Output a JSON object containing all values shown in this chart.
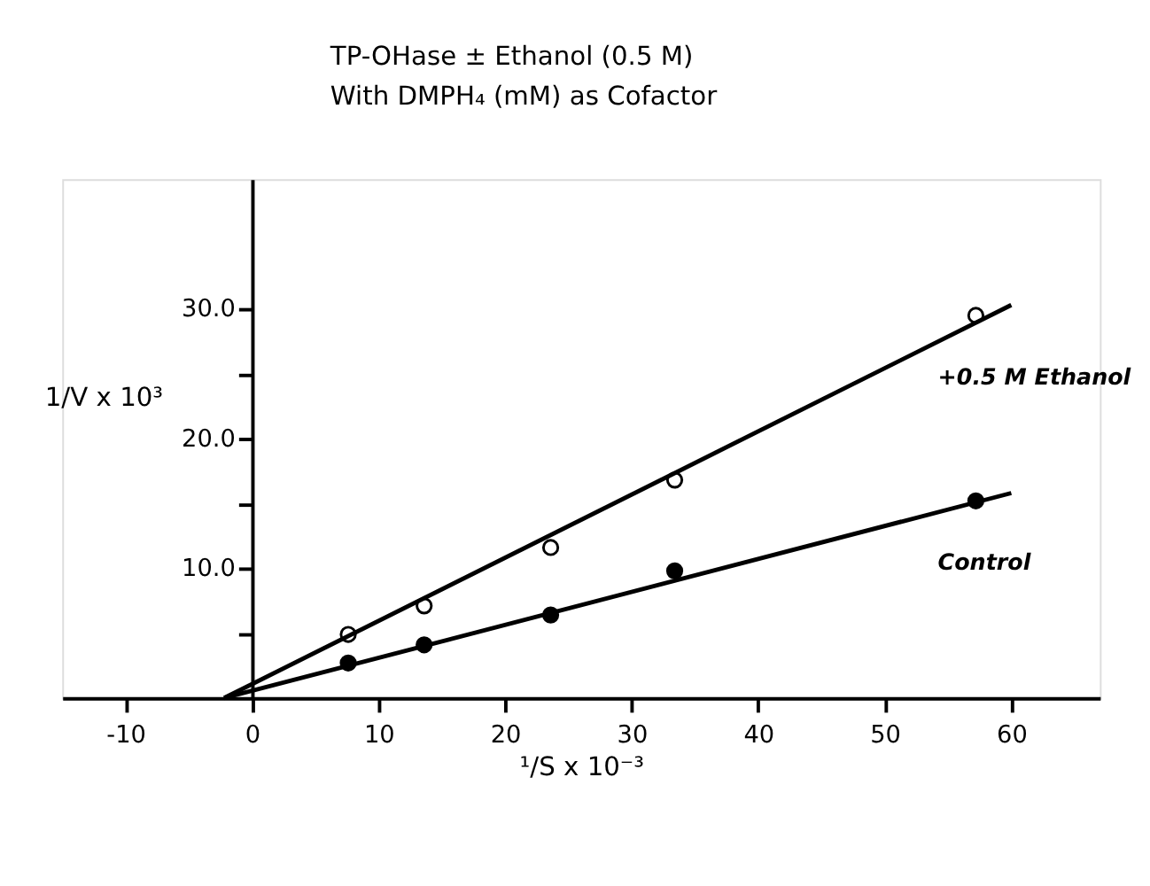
{
  "chart_data": {
    "type": "scatter",
    "title": "TP-OHase ± Ethanol (0.5 M)",
    "subtitle": "With DMPH₄ (mM) as Cofactor",
    "xlabel": "¹/S x 10⁻³",
    "ylabel": "1/V x 10³",
    "xlim": [
      -15,
      67
    ],
    "ylim": [
      0,
      40
    ],
    "xticks": [
      -10,
      0,
      10,
      20,
      30,
      40,
      50,
      60
    ],
    "yticks": [
      {
        "value": 5,
        "label": null
      },
      {
        "value": 10,
        "label": "10.0"
      },
      {
        "value": 15,
        "label": null
      },
      {
        "value": 20,
        "label": "20.0"
      },
      {
        "value": 25,
        "label": null
      },
      {
        "value": 30,
        "label": "30.0"
      }
    ],
    "grid": false,
    "marker": "circle",
    "series": [
      {
        "name": "+0.5 M Ethanol",
        "color": "#ffffff",
        "x": [
          7.6,
          13.6,
          23.6,
          33.4,
          57.2
        ],
        "values": [
          4.9,
          7.1,
          11.6,
          16.8,
          29.5
        ]
      },
      {
        "name": "Control",
        "color": "#000000",
        "x": [
          7.6,
          13.6,
          23.6,
          33.4,
          57.2
        ],
        "values": [
          2.7,
          4.1,
          6.4,
          9.8,
          15.2
        ]
      },
      {
        "type": "line",
        "marker": "none",
        "color": "#000000",
        "x": [
          -2.2,
          60
        ],
        "values": [
          0,
          30.3
        ]
      },
      {
        "type": "line",
        "marker": "none",
        "color": "#000000",
        "x": [
          -2.2,
          60
        ],
        "values": [
          0,
          15.8
        ]
      }
    ]
  }
}
